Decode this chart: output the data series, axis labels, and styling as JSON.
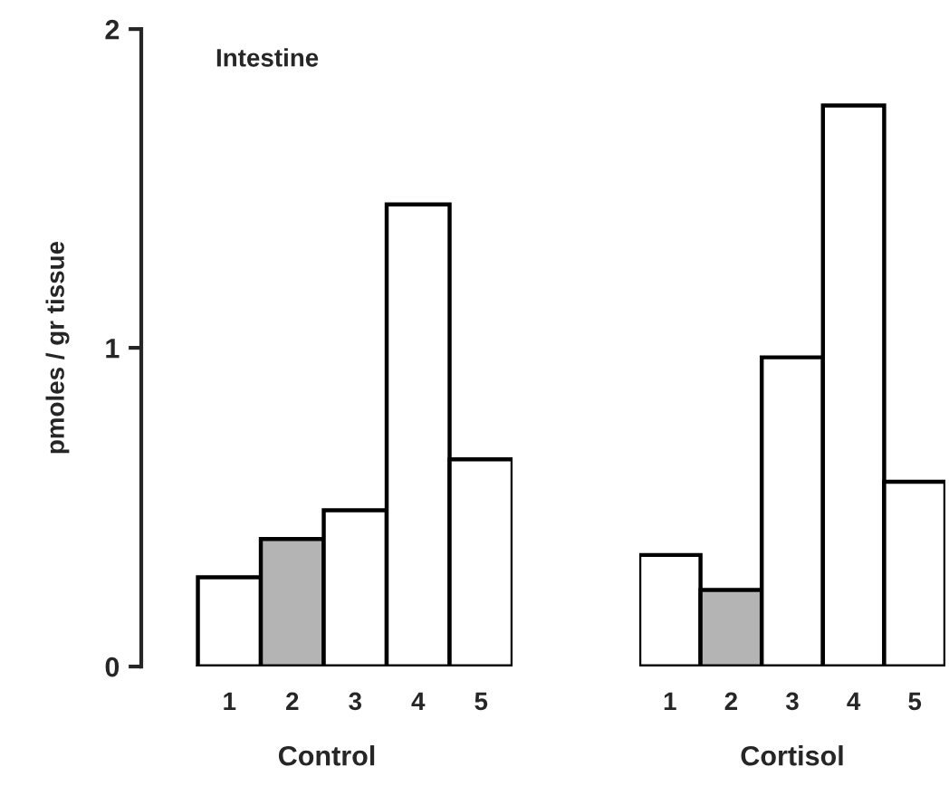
{
  "chart_data": [
    {
      "type": "bar",
      "title": "Intestine",
      "xlabel": "Control",
      "ylabel": "pmoles / gr tissue",
      "categories": [
        "1",
        "2",
        "3",
        "4",
        "5"
      ],
      "values": [
        0.28,
        0.4,
        0.49,
        1.45,
        0.65
      ],
      "colors": [
        "#ffffff",
        "#b4b4b4",
        "#ffffff",
        "#ffffff",
        "#ffffff"
      ],
      "ylim": [
        0,
        2
      ],
      "yticks": [
        0,
        1,
        2
      ]
    },
    {
      "type": "bar",
      "xlabel": "Cortisol",
      "categories": [
        "1",
        "2",
        "3",
        "4",
        "5"
      ],
      "values": [
        0.35,
        0.24,
        0.97,
        1.76,
        0.58
      ],
      "colors": [
        "#ffffff",
        "#b4b4b4",
        "#ffffff",
        "#ffffff",
        "#ffffff"
      ],
      "ylim": [
        0,
        2
      ],
      "tick_labels": "x"
    }
  ]
}
